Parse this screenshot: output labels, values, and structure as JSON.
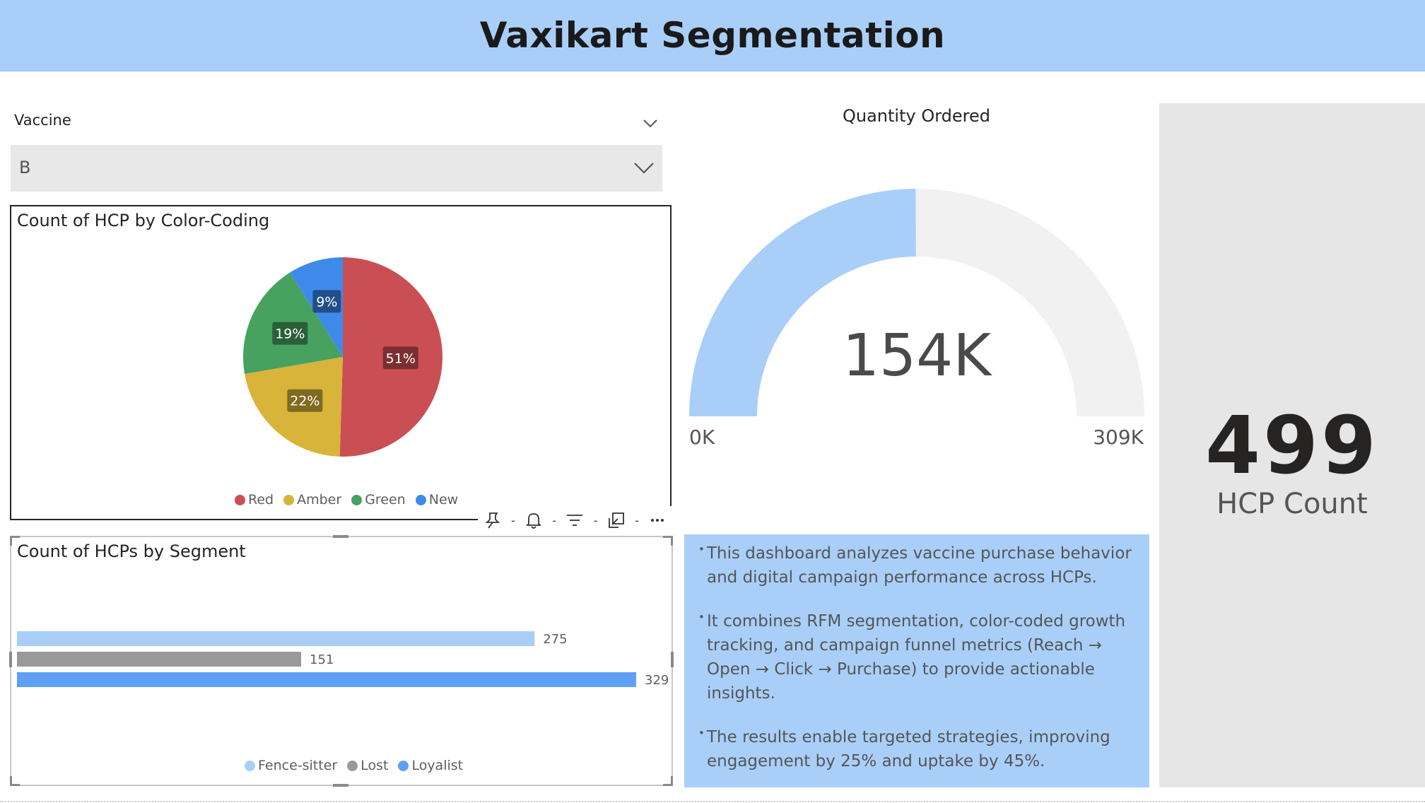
{
  "header": {
    "title": "Vaxikart Segmentation"
  },
  "slicer": {
    "title": "Vaccine",
    "value": "B"
  },
  "colors": {
    "header_bg": "#a9cff9",
    "red": "#c94f54",
    "amber": "#d8b43a",
    "green": "#47a15f",
    "new": "#3e8aeb",
    "fence_sitter": "#a9cff9",
    "lost": "#999999",
    "loyalist": "#5fa0f4",
    "gauge_fill": "#a9cff9",
    "gauge_track": "#f1f1f1",
    "card_bg": "#e6e6e6"
  },
  "icons": [
    "pin-icon",
    "bell-icon",
    "filter-icon",
    "focus-mode-icon",
    "more-options-icon",
    "chevron-down-icon"
  ],
  "chart_data": [
    {
      "type": "pie",
      "title": "Count of HCP by Color-Coding",
      "categories": [
        "Red",
        "Amber",
        "Green",
        "New"
      ],
      "values": [
        51,
        22,
        19,
        9
      ],
      "labels": [
        "51%",
        "22%",
        "19%",
        "9%"
      ],
      "legend_position": "bottom"
    },
    {
      "type": "bar",
      "orientation": "horizontal",
      "title": "Count of HCPs by Segment",
      "categories": [
        "Fence-sitter",
        "Lost",
        "Loyalist"
      ],
      "values": [
        275,
        151,
        329
      ],
      "labels": [
        "275",
        "151",
        "329"
      ],
      "legend_position": "bottom",
      "grid": false
    },
    {
      "type": "gauge",
      "title": "Quantity Ordered",
      "value": 154,
      "value_label": "154K",
      "min": 0,
      "max": 309,
      "min_label": "0K",
      "max_label": "309K"
    }
  ],
  "description": {
    "bullets": [
      "This dashboard analyzes vaccine purchase behavior and digital campaign performance across HCPs.",
      "It combines RFM segmentation, color-coded growth tracking, and campaign funnel metrics (Reach → Open → Click → Purchase) to provide actionable insights.",
      "The results enable targeted strategies, improving engagement by 25% and uptake by 45%."
    ]
  },
  "card": {
    "value": "499",
    "label": "HCP Count"
  }
}
